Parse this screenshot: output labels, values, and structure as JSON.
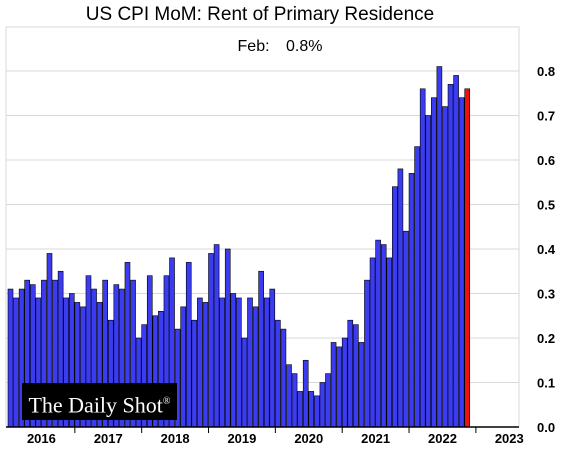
{
  "chart_data": {
    "type": "bar",
    "title": "US CPI MoM: Rent of Primary Residence",
    "annotation_label": "Feb:",
    "annotation_value": "0.8%",
    "ylim": [
      0,
      0.85
    ],
    "yticks": [
      "0.0",
      "0.1",
      "0.2",
      "0.3",
      "0.4",
      "0.5",
      "0.6",
      "0.7",
      "0.8"
    ],
    "grid": true,
    "y_axis_position": "right",
    "x_year_labels": [
      "2016",
      "2017",
      "2018",
      "2019",
      "2020",
      "2021",
      "2022",
      "2023"
    ],
    "series": [
      {
        "color": "#3b3bf0",
        "values": [
          0.31,
          0.29,
          0.31,
          0.33,
          0.32,
          0.29,
          0.33,
          0.39,
          0.33,
          0.35,
          0.29,
          0.3,
          0.28,
          0.27,
          0.34,
          0.31,
          0.28,
          0.33,
          0.24,
          0.32,
          0.31,
          0.37,
          0.33,
          0.2,
          0.23,
          0.34,
          0.25,
          0.26,
          0.34,
          0.38,
          0.22,
          0.27,
          0.37,
          0.24,
          0.29,
          0.28,
          0.39,
          0.41,
          0.29,
          0.4,
          0.3,
          0.29,
          0.2,
          0.29,
          0.27,
          0.35,
          0.29,
          0.31,
          0.24,
          0.22,
          0.14,
          0.12,
          0.08,
          0.15,
          0.08,
          0.07,
          0.1,
          0.12,
          0.19,
          0.18,
          0.2,
          0.24,
          0.23,
          0.19,
          0.33,
          0.38,
          0.42,
          0.41,
          0.38,
          0.54,
          0.58,
          0.44,
          0.57,
          0.63,
          0.76,
          0.7,
          0.74,
          0.81,
          0.72,
          0.77,
          0.79,
          0.74
        ]
      },
      {
        "name": "Feb",
        "color": "#ee1111",
        "values": [
          0.76
        ]
      }
    ]
  },
  "logo": {
    "text": "The Daily Shot®"
  }
}
